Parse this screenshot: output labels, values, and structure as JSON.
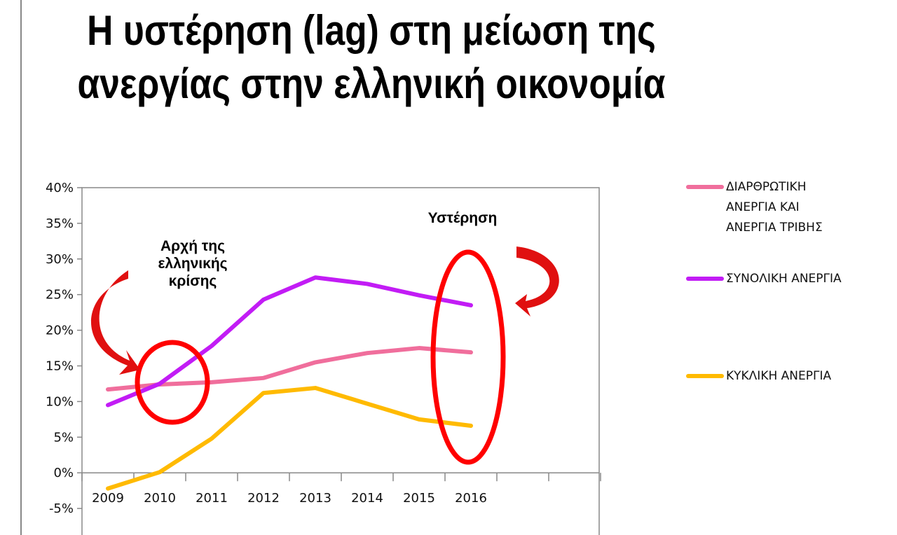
{
  "title": "Η υστέρηση (lag) στη μείωση της ανεργίας στην ελληνική οικονομία",
  "chart_data": {
    "type": "line",
    "title": "Η υστέρηση (lag) στη μείωση της ανεργίας στην ελληνική οικονομία",
    "categories": [
      "2009",
      "2010",
      "2011",
      "2012",
      "2013",
      "2014",
      "2015",
      "2016"
    ],
    "ylim": [
      -5,
      40
    ],
    "yticks": [
      "-5%",
      "0%",
      "5%",
      "10%",
      "15%",
      "20%",
      "25%",
      "30%",
      "35%",
      "40%"
    ],
    "ytick_values": [
      -5,
      0,
      5,
      10,
      15,
      20,
      25,
      30,
      35,
      40
    ],
    "grid": false,
    "legend": "right",
    "series": [
      {
        "name": "ΔΙΑΡΘΡΩΤΙΚΗ ΑΝΕΡΓΙΑ ΚΑΙ ΑΝΕΡΓΙΑ ΤΡΙΒΗΣ",
        "color": "#f06e9c",
        "values": [
          11.7,
          12.4,
          12.7,
          13.3,
          15.5,
          16.8,
          17.5,
          16.9
        ]
      },
      {
        "name": "ΣΥΝΟΛΙΚΗ ΑΝΕΡΓΙΑ",
        "color": "#c21cf5",
        "values": [
          9.5,
          12.5,
          17.8,
          24.3,
          27.4,
          26.5,
          24.9,
          23.5
        ]
      },
      {
        "name": "ΚΥΚΛΙΚΗ ΑΝΕΡΓΙΑ",
        "color": "#ffba00",
        "values": [
          -2.2,
          0.1,
          4.8,
          11.2,
          11.9,
          9.7,
          7.5,
          6.6
        ]
      }
    ],
    "annotations": [
      {
        "text": "Αρχή της ελληνικής κρίσης",
        "lines": [
          "Αρχή της",
          "ελληνικής",
          "κρίσης"
        ]
      },
      {
        "text": "Υστέρηση"
      }
    ],
    "annotation_color": "#ff0000"
  }
}
